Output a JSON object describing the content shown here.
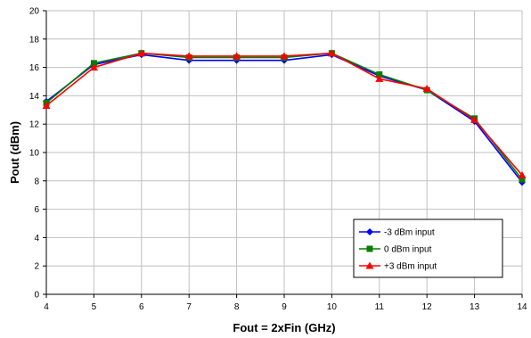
{
  "chart_data": {
    "type": "line",
    "title": "",
    "xlabel": "Fout = 2xFin (GHz)",
    "ylabel": "Pout (dBm)",
    "xlim": [
      4,
      14
    ],
    "ylim": [
      0,
      20
    ],
    "x_ticks": [
      "4",
      "5",
      "6",
      "7",
      "8",
      "9",
      "10",
      "11",
      "12",
      "13",
      "14"
    ],
    "y_ticks": [
      "0",
      "2",
      "4",
      "6",
      "8",
      "10",
      "12",
      "14",
      "16",
      "18",
      "20"
    ],
    "grid": true,
    "legend_position": "bottom-right",
    "x": [
      4,
      5,
      6,
      7,
      8,
      9,
      10,
      11,
      12,
      13,
      14
    ],
    "series": [
      {
        "name": "-3 dBm input",
        "color": "#0000ff",
        "marker": "diamond",
        "values": [
          13.6,
          16.2,
          16.9,
          16.5,
          16.5,
          16.5,
          16.9,
          15.4,
          14.4,
          12.2,
          7.9
        ]
      },
      {
        "name": "0 dBm input",
        "color": "#007f00",
        "marker": "square",
        "values": [
          13.5,
          16.3,
          17.0,
          16.7,
          16.7,
          16.7,
          17.0,
          15.5,
          14.4,
          12.4,
          8.1
        ]
      },
      {
        "name": "+3 dBm input",
        "color": "#ff0000",
        "marker": "triangle",
        "values": [
          13.3,
          16.0,
          17.0,
          16.8,
          16.8,
          16.8,
          17.0,
          15.2,
          14.5,
          12.3,
          8.4
        ]
      }
    ]
  }
}
